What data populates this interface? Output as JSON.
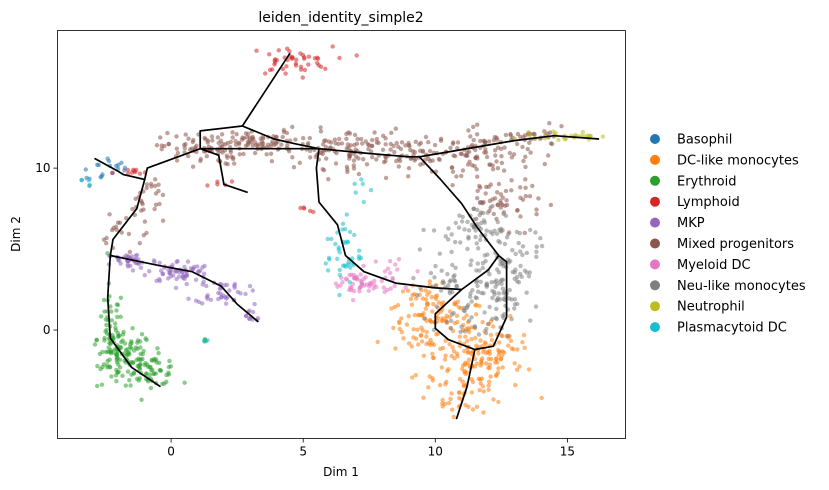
{
  "chart_data": {
    "type": "scatter",
    "title": "leiden_identity_simple2",
    "xlabel": "Dim 1",
    "ylabel": "Dim 2",
    "xlim": [
      -4.3,
      17.2
    ],
    "ylim": [
      -6.7,
      18.5
    ],
    "xticks": [
      0,
      5,
      10,
      15
    ],
    "yticks": [
      0,
      10
    ],
    "grid": false,
    "legend_position": "right",
    "series": [
      {
        "name": "Basophil",
        "color": "#1f77b4",
        "clusters": [
          {
            "cx": -2.2,
            "cy": 10.1,
            "sx": 0.5,
            "sy": 0.35,
            "n": 14
          },
          {
            "cx": -3.0,
            "cy": 9.3,
            "sx": 0.3,
            "sy": 0.15,
            "n": 6
          }
        ]
      },
      {
        "name": "DC-like monocytes",
        "color": "#ff7f0e",
        "clusters": [
          {
            "cx": 10.2,
            "cy": 0.2,
            "sx": 0.9,
            "sy": 0.9,
            "n": 90
          },
          {
            "cx": 11.3,
            "cy": -2.0,
            "sx": 1.0,
            "sy": 1.1,
            "n": 110
          },
          {
            "cx": 11.0,
            "cy": -4.3,
            "sx": 0.5,
            "sy": 0.5,
            "n": 25
          },
          {
            "cx": 12.3,
            "cy": -1.0,
            "sx": 0.6,
            "sy": 0.8,
            "n": 40
          },
          {
            "cx": 9.6,
            "cy": 1.6,
            "sx": 0.7,
            "sy": 0.6,
            "n": 40
          }
        ]
      },
      {
        "name": "Erythroid",
        "color": "#2ca02c",
        "clusters": [
          {
            "cx": -2.3,
            "cy": -0.5,
            "sx": 0.25,
            "sy": 1.6,
            "n": 70
          },
          {
            "cx": -1.6,
            "cy": -1.6,
            "sx": 0.45,
            "sy": 0.7,
            "n": 80
          },
          {
            "cx": -0.8,
            "cy": -2.5,
            "sx": 0.55,
            "sy": 0.45,
            "n": 60
          },
          {
            "cx": 1.35,
            "cy": -0.7,
            "sx": 0.08,
            "sy": 0.06,
            "n": 3
          }
        ]
      },
      {
        "name": "Lymphoid",
        "color": "#d62728",
        "clusters": [
          {
            "cx": 4.5,
            "cy": 16.6,
            "sx": 0.8,
            "sy": 0.45,
            "n": 45
          },
          {
            "cx": -1.5,
            "cy": 9.7,
            "sx": 0.35,
            "sy": 0.12,
            "n": 10
          },
          {
            "cx": 5.1,
            "cy": 7.4,
            "sx": 0.15,
            "sy": 0.12,
            "n": 5
          },
          {
            "cx": 1.9,
            "cy": 9.0,
            "sx": 0.25,
            "sy": 0.2,
            "n": 5
          }
        ]
      },
      {
        "name": "MKP",
        "color": "#9467bd",
        "clusters": [
          {
            "cx": -1.5,
            "cy": 4.3,
            "sx": 0.5,
            "sy": 0.25,
            "n": 40
          },
          {
            "cx": 0.3,
            "cy": 3.6,
            "sx": 0.6,
            "sy": 0.35,
            "n": 60
          },
          {
            "cx": 1.9,
            "cy": 2.4,
            "sx": 0.5,
            "sy": 0.4,
            "n": 40
          },
          {
            "cx": 3.0,
            "cy": 0.9,
            "sx": 0.25,
            "sy": 0.3,
            "n": 12
          }
        ]
      },
      {
        "name": "Mixed progenitors",
        "color": "#8c564b",
        "clusters": [
          {
            "cx": 1.2,
            "cy": 11.2,
            "sx": 0.8,
            "sy": 0.5,
            "n": 90
          },
          {
            "cx": 3.6,
            "cy": 11.5,
            "sx": 0.8,
            "sy": 0.4,
            "n": 60
          },
          {
            "cx": 6.5,
            "cy": 11.2,
            "sx": 1.2,
            "sy": 0.6,
            "n": 110
          },
          {
            "cx": 9.5,
            "cy": 10.8,
            "sx": 1.0,
            "sy": 0.5,
            "n": 70
          },
          {
            "cx": 11.8,
            "cy": 11.0,
            "sx": 0.9,
            "sy": 0.7,
            "n": 80
          },
          {
            "cx": -1.0,
            "cy": 8.0,
            "sx": 0.35,
            "sy": 0.9,
            "n": 30
          },
          {
            "cx": -2.0,
            "cy": 5.8,
            "sx": 0.3,
            "sy": 0.6,
            "n": 15
          },
          {
            "cx": 12.5,
            "cy": 8.0,
            "sx": 0.8,
            "sy": 0.8,
            "n": 60
          },
          {
            "cx": 13.8,
            "cy": 11.9,
            "sx": 0.6,
            "sy": 0.3,
            "n": 30
          }
        ]
      },
      {
        "name": "Myeloid DC",
        "color": "#e377c2",
        "clusters": [
          {
            "cx": 7.1,
            "cy": 2.8,
            "sx": 0.6,
            "sy": 0.45,
            "n": 50
          },
          {
            "cx": 8.3,
            "cy": 3.6,
            "sx": 0.5,
            "sy": 0.9,
            "n": 15
          }
        ]
      },
      {
        "name": "Neu-like monocytes",
        "color": "#7f7f7f",
        "clusters": [
          {
            "cx": 12.5,
            "cy": 4.0,
            "sx": 0.7,
            "sy": 1.4,
            "n": 110
          },
          {
            "cx": 11.2,
            "cy": 6.2,
            "sx": 0.7,
            "sy": 0.8,
            "n": 50
          },
          {
            "cx": 11.5,
            "cy": 1.0,
            "sx": 0.8,
            "sy": 1.0,
            "n": 60
          },
          {
            "cx": 10.3,
            "cy": 3.0,
            "sx": 0.6,
            "sy": 0.6,
            "n": 25
          }
        ]
      },
      {
        "name": "Neutrophil",
        "color": "#bcbd22",
        "clusters": [
          {
            "cx": 15.0,
            "cy": 12.0,
            "sx": 0.6,
            "sy": 0.12,
            "n": 30
          }
        ]
      },
      {
        "name": "Plasmacytoid DC",
        "color": "#17becf",
        "clusters": [
          {
            "cx": 6.5,
            "cy": 4.8,
            "sx": 0.35,
            "sy": 1.1,
            "n": 40
          },
          {
            "cx": 7.2,
            "cy": 8.5,
            "sx": 0.25,
            "sy": 0.6,
            "n": 6
          },
          {
            "cx": -3.0,
            "cy": 9.2,
            "sx": 0.15,
            "sy": 0.1,
            "n": 3
          },
          {
            "cx": 1.4,
            "cy": -0.7,
            "sx": 0.08,
            "sy": 0.06,
            "n": 3
          }
        ]
      }
    ],
    "trajectory_paths": [
      [
        [
          4.5,
          17.1
        ],
        [
          2.7,
          12.6
        ],
        [
          1.1,
          12.3
        ],
        [
          1.1,
          11.2
        ],
        [
          1.8,
          10.8
        ],
        [
          2.0,
          9.0
        ],
        [
          2.9,
          8.5
        ]
      ],
      [
        [
          2.7,
          12.6
        ],
        [
          3.9,
          11.8
        ],
        [
          4.7,
          11.5
        ],
        [
          5.6,
          11.2
        ],
        [
          7.5,
          10.9
        ],
        [
          9.0,
          10.7
        ],
        [
          9.4,
          10.7
        ],
        [
          10.5,
          11.0
        ],
        [
          13.0,
          11.7
        ],
        [
          14.5,
          12.0
        ],
        [
          16.2,
          11.8
        ]
      ],
      [
        [
          5.6,
          11.2
        ],
        [
          1.1,
          11.2
        ],
        [
          -0.9,
          10.0
        ],
        [
          -1.0,
          9.3
        ],
        [
          -1.8,
          9.6
        ],
        [
          -2.0,
          9.8
        ],
        [
          -2.9,
          10.6
        ]
      ],
      [
        [
          -1.0,
          9.3
        ],
        [
          -1.3,
          7.5
        ],
        [
          -2.2,
          5.6
        ],
        [
          -2.3,
          4.6
        ],
        [
          -2.4,
          2.0
        ],
        [
          -2.3,
          -0.5
        ],
        [
          -1.5,
          -2.3
        ],
        [
          -0.4,
          -3.5
        ]
      ],
      [
        [
          -2.3,
          4.6
        ],
        [
          -0.5,
          4.0
        ],
        [
          0.8,
          3.6
        ],
        [
          1.9,
          2.7
        ],
        [
          2.5,
          1.6
        ],
        [
          3.3,
          0.5
        ]
      ],
      [
        [
          5.6,
          11.2
        ],
        [
          5.5,
          10.0
        ],
        [
          5.6,
          7.9
        ],
        [
          6.3,
          6.5
        ],
        [
          6.6,
          4.6
        ],
        [
          7.3,
          3.6
        ],
        [
          8.5,
          2.9
        ],
        [
          10.0,
          2.6
        ],
        [
          11.0,
          2.5
        ]
      ],
      [
        [
          9.4,
          10.7
        ],
        [
          10.2,
          9.3
        ],
        [
          11.0,
          7.8
        ],
        [
          11.6,
          6.3
        ],
        [
          12.4,
          4.6
        ],
        [
          12.0,
          3.7
        ],
        [
          11.0,
          2.5
        ]
      ],
      [
        [
          11.0,
          2.5
        ],
        [
          10.0,
          1.0
        ],
        [
          10.0,
          0.1
        ],
        [
          10.5,
          -0.6
        ],
        [
          11.5,
          -1.2
        ],
        [
          12.2,
          -1.0
        ],
        [
          12.7,
          0.8
        ],
        [
          12.7,
          4.2
        ],
        [
          12.4,
          4.6
        ]
      ],
      [
        [
          11.5,
          -1.2
        ],
        [
          11.2,
          -3.5
        ],
        [
          10.8,
          -5.5
        ]
      ]
    ]
  }
}
